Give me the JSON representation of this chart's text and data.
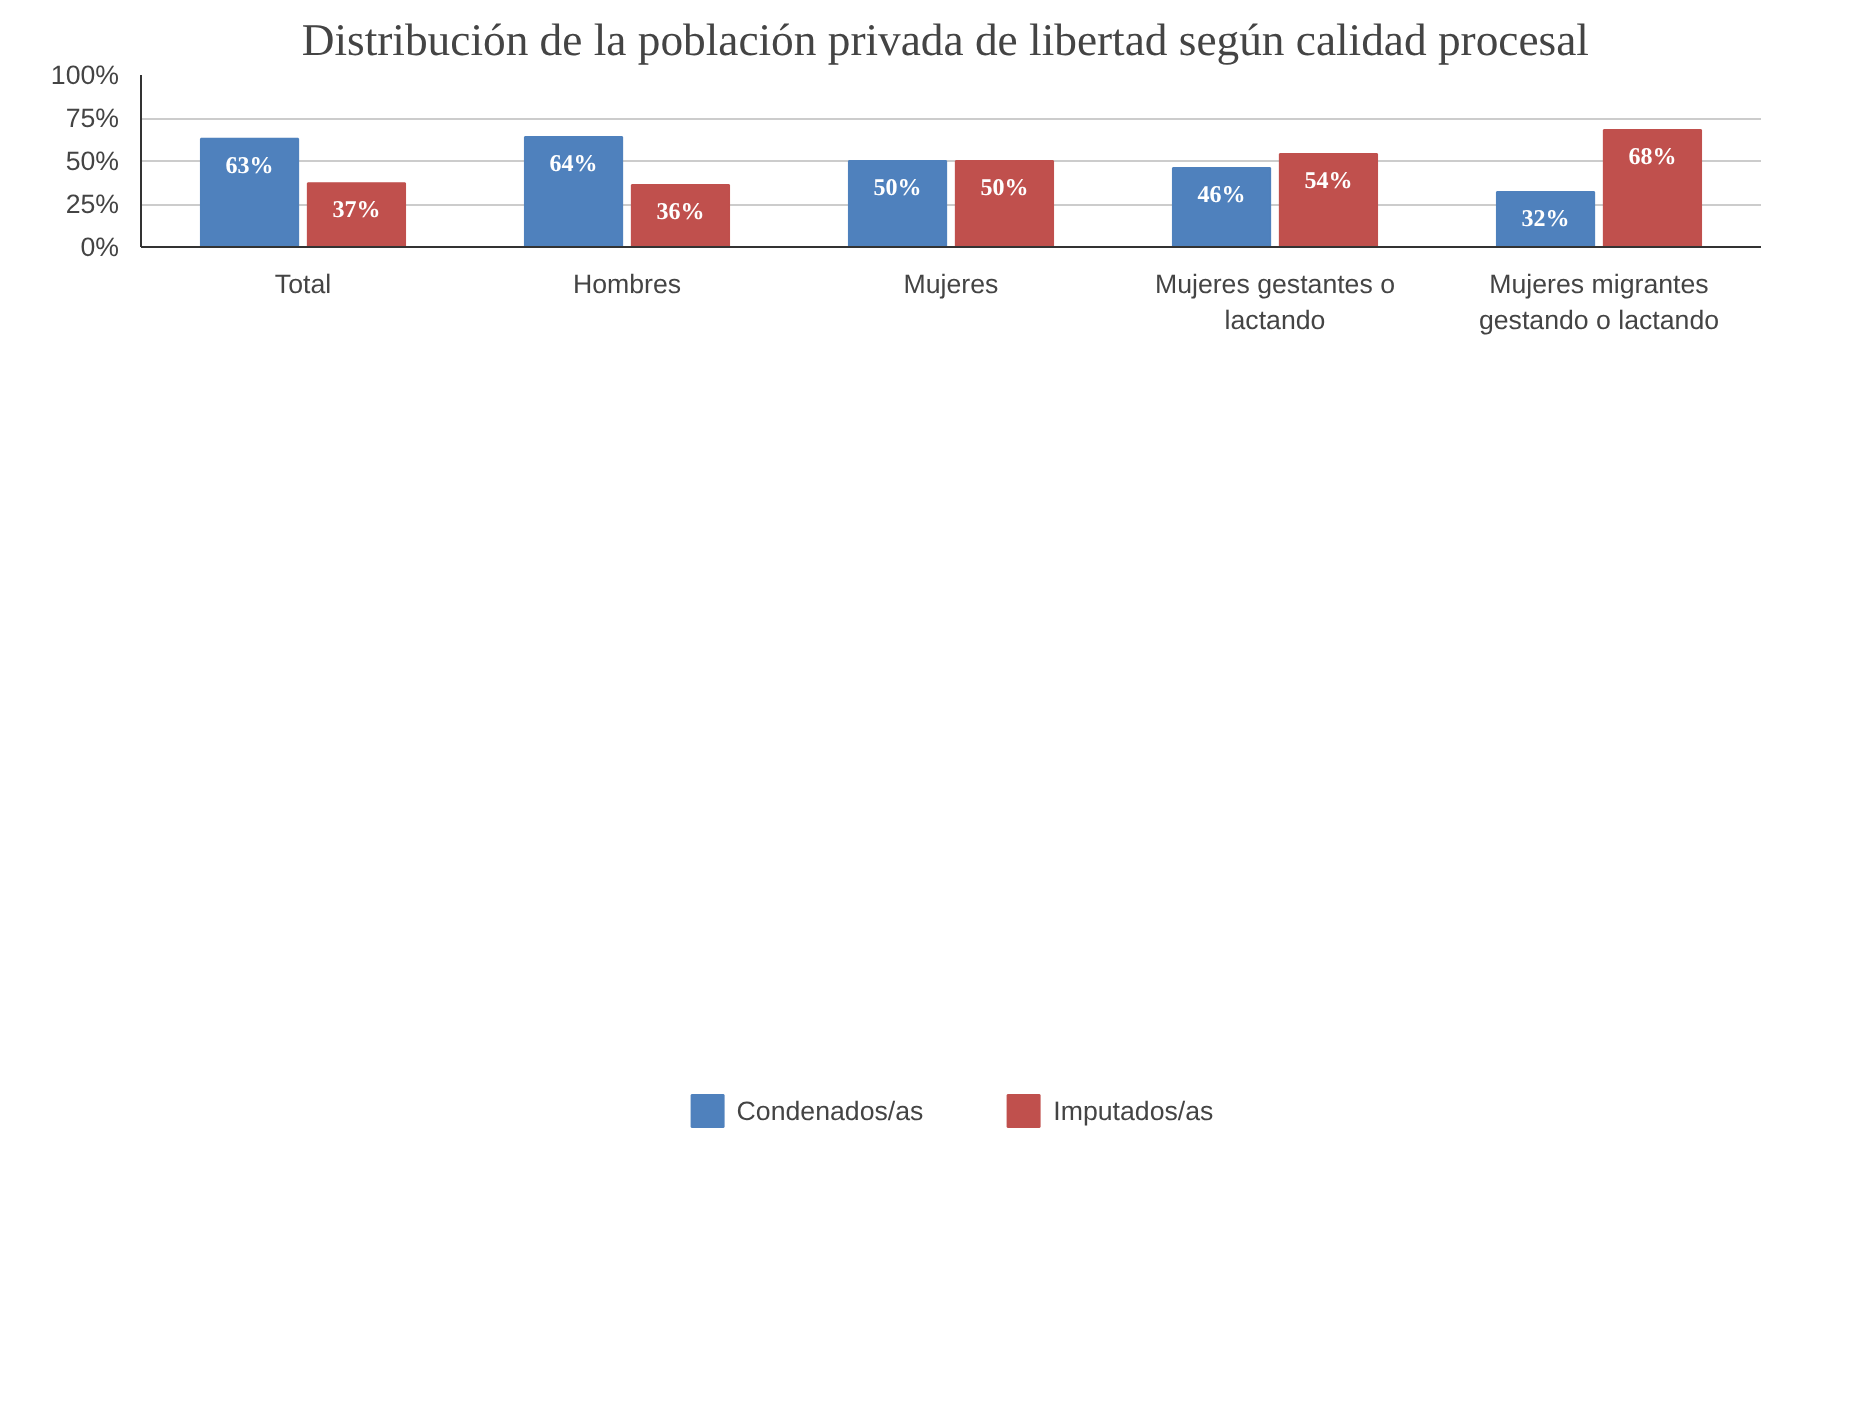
{
  "chart_data": {
    "type": "bar",
    "title": "Distribución de la  población privada de libertad según calidad procesal",
    "categories": [
      "Total",
      "Hombres",
      "Mujeres",
      "Mujeres gestantes o lactando",
      "Mujeres migrantes gestando o lactando"
    ],
    "series": [
      {
        "name": "Condenados/as",
        "color": "#4f81bd",
        "values": [
          63,
          64,
          50,
          46,
          32
        ],
        "value_labels": [
          "63%",
          "64%",
          "50%",
          "46%",
          "32%"
        ]
      },
      {
        "name": "Imputados/as",
        "color": "#c0504d",
        "values": [
          37,
          36,
          50,
          54,
          68
        ],
        "value_labels": [
          "37%",
          "36%",
          "50%",
          "54%",
          "68%"
        ]
      }
    ],
    "ylim": [
      0,
      100
    ],
    "yticks": [
      {
        "value": 0,
        "label": "0%"
      },
      {
        "value": 25,
        "label": "25%"
      },
      {
        "value": 50,
        "label": "50%"
      },
      {
        "value": 75,
        "label": "75%"
      },
      {
        "value": 100,
        "label": "100%"
      }
    ],
    "grid": "y",
    "legend": "bottom"
  }
}
